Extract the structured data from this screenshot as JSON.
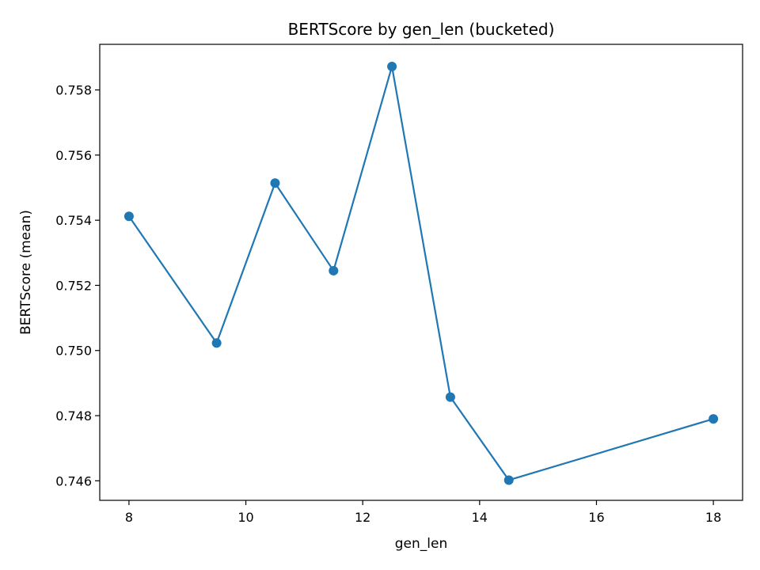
{
  "chart_data": {
    "type": "line",
    "title": "BERTScore by gen_len (bucketed)",
    "xlabel": "gen_len",
    "ylabel": "BERTScore (mean)",
    "xlim": [
      7.5,
      18.5
    ],
    "ylim": [
      0.7454,
      0.7594
    ],
    "xticks": [
      8,
      10,
      12,
      14,
      16,
      18
    ],
    "xtick_labels": [
      "8",
      "10",
      "12",
      "14",
      "16",
      "18"
    ],
    "yticks": [
      0.746,
      0.748,
      0.75,
      0.752,
      0.754,
      0.756,
      0.758
    ],
    "ytick_labels": [
      "0.746",
      "0.748",
      "0.750",
      "0.752",
      "0.754",
      "0.756",
      "0.758"
    ],
    "grid": false,
    "series": [
      {
        "color": "#1f77b4",
        "x": [
          8,
          9.5,
          10.5,
          11.5,
          12.5,
          13.5,
          14.5,
          18
        ],
        "y": [
          0.75412,
          0.75023,
          0.75514,
          0.75245,
          0.75872,
          0.74857,
          0.74602,
          0.7479
        ]
      }
    ]
  }
}
